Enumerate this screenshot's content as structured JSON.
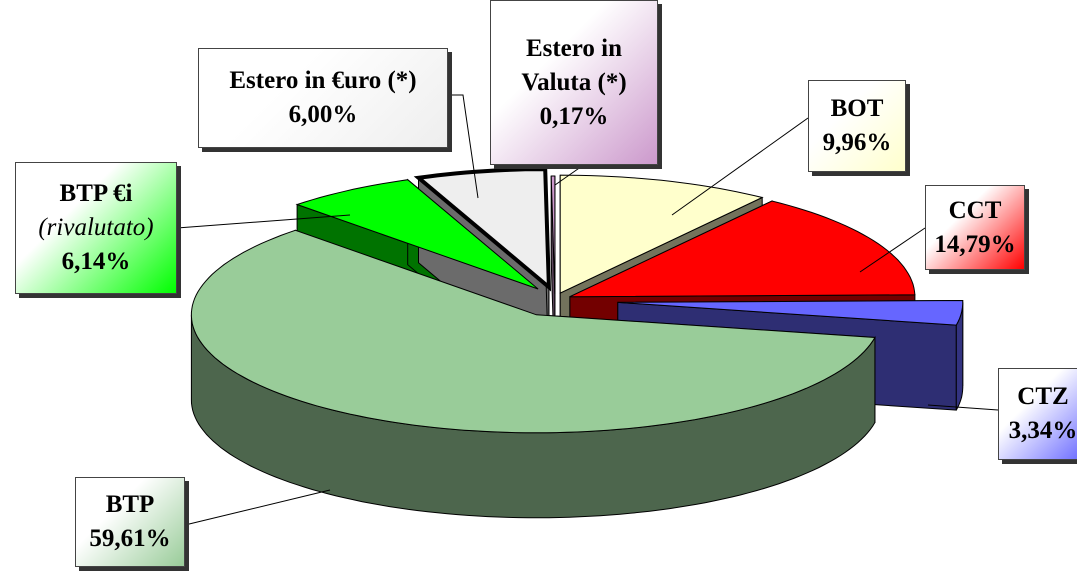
{
  "chart_data": {
    "type": "pie",
    "categories": [
      "BOT",
      "CCT",
      "CTZ",
      "BTP",
      "BTP €i",
      "Estero in €uro (*)",
      "Estero in Valuta (*)"
    ],
    "label_notes": [
      null,
      null,
      null,
      null,
      "(rivalutato)",
      null,
      null
    ],
    "values": [
      9.96,
      14.79,
      3.34,
      59.61,
      6.14,
      6.0,
      0.17
    ],
    "value_labels": [
      "9,96%",
      "14,79%",
      "3,34%",
      "59,61%",
      "6,14%",
      "6,00%",
      "0,17%"
    ],
    "colors": [
      "#ffffcc",
      "#ff0000",
      "#6666ff",
      "#99cc99",
      "#00ff00",
      "#eeeeee",
      "#cc99cc"
    ]
  }
}
